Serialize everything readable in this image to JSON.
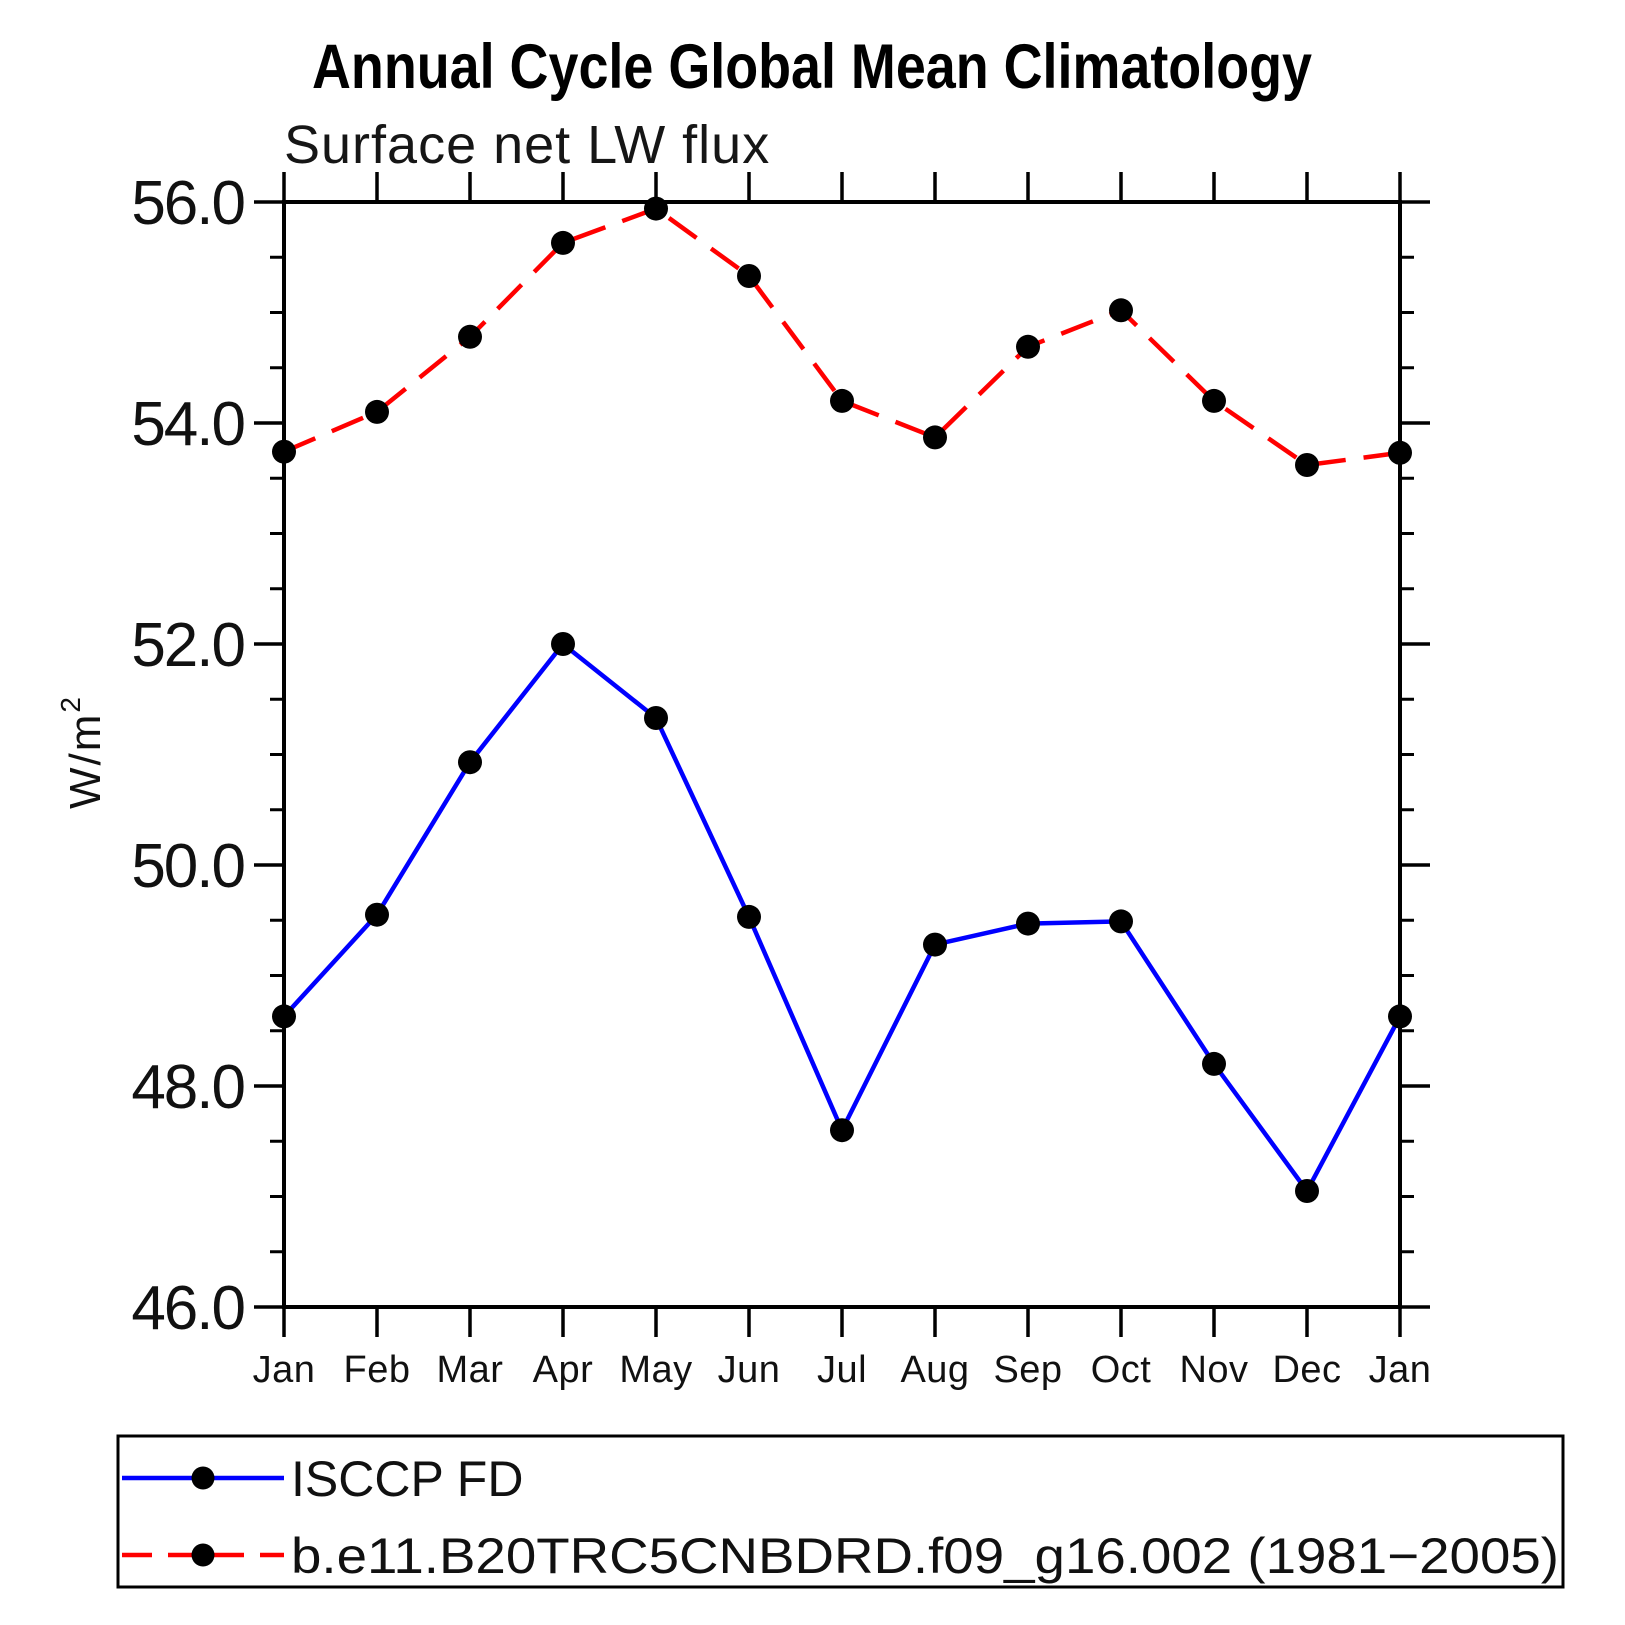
{
  "figure": {
    "title": "Annual Cycle Global Mean Climatology",
    "subtitle": "Surface net LW flux",
    "background": "#ffffff"
  },
  "y_axis": {
    "label": "W/m²",
    "label_base": "W/m",
    "label_sup": "2",
    "tick_labels": [
      "46.0",
      "48.0",
      "50.0",
      "52.0",
      "54.0",
      "56.0"
    ]
  },
  "x_axis": {
    "tick_labels": [
      "Jan",
      "Feb",
      "Mar",
      "Apr",
      "May",
      "Jun",
      "Jul",
      "Aug",
      "Sep",
      "Oct",
      "Nov",
      "Dec",
      "Jan"
    ]
  },
  "legend": {
    "entries": [
      {
        "label": "ISCCP FD",
        "color": "#0000ff",
        "line_style": "solid",
        "marker": "filled-circle",
        "marker_color": "#000000"
      },
      {
        "label": "b.e11.B20TRC5CNBDRD.f09_g16.002 (1981−2005)",
        "color": "#ff0000",
        "line_style": "dashed",
        "marker": "filled-circle",
        "marker_color": "#000000"
      }
    ]
  },
  "chart_data": {
    "type": "line",
    "title": "Annual Cycle Global Mean Climatology",
    "subtitle": "Surface net LW flux",
    "xlabel": "",
    "ylabel": "W/m²",
    "categories": [
      "Jan",
      "Feb",
      "Mar",
      "Apr",
      "May",
      "Jun",
      "Jul",
      "Aug",
      "Sep",
      "Oct",
      "Nov",
      "Dec",
      "Jan"
    ],
    "ylim": [
      46.0,
      56.0
    ],
    "ytick_major": [
      46.0,
      48.0,
      50.0,
      52.0,
      54.0,
      56.0
    ],
    "ytick_minor_step": 0.5,
    "grid": false,
    "legend_position": "bottom-outside",
    "series": [
      {
        "name": "ISCCP FD",
        "color": "#0000ff",
        "style": "solid",
        "marker": "filled-circle",
        "marker_color": "#000000",
        "values": [
          48.63,
          49.55,
          50.93,
          52.0,
          51.33,
          49.53,
          47.6,
          49.28,
          49.47,
          49.49,
          48.2,
          47.05,
          48.63
        ]
      },
      {
        "name": "b.e11.B20TRC5CNBDRD.f09_g16.002 (1981−2005)",
        "color": "#ff0000",
        "style": "dashed",
        "marker": "filled-circle",
        "marker_color": "#000000",
        "values": [
          53.74,
          54.1,
          54.78,
          55.63,
          55.94,
          55.33,
          54.2,
          53.87,
          54.69,
          55.02,
          54.2,
          53.62,
          53.73
        ]
      }
    ]
  }
}
